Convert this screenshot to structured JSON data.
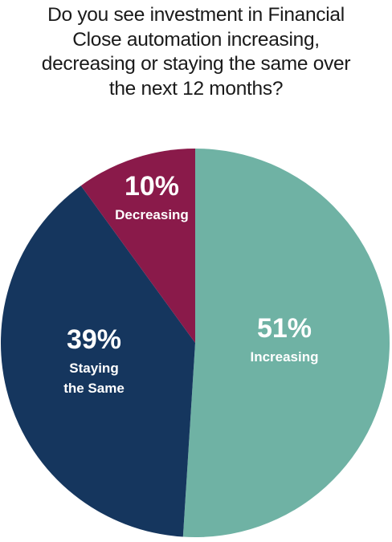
{
  "chart_data": {
    "type": "pie",
    "title_lines": [
      "Do you see investment in Financial",
      "Close automation increasing,",
      "decreasing or staying the same over",
      "the next 12 months?"
    ],
    "slices": [
      {
        "value": 51,
        "pct_label": "51%",
        "label_lines": [
          "Increasing"
        ],
        "color": "#6fb2a4"
      },
      {
        "value": 39,
        "pct_label": "39%",
        "label_lines": [
          "Staying",
          "the Same"
        ],
        "color": "#15365e"
      },
      {
        "value": 10,
        "pct_label": "10%",
        "label_lines": [
          "Decreasing"
        ],
        "color": "#8a1a4a"
      }
    ]
  }
}
